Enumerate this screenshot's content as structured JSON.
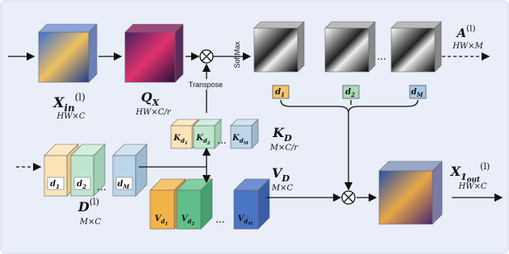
{
  "nodes": {
    "x_in": {
      "base": "X",
      "sub": "in",
      "sup": "(l)",
      "shape": "HW×C"
    },
    "q_x": {
      "base": "Q",
      "sub": "X",
      "shape": "HW×C/r"
    },
    "a": {
      "base": "A",
      "sup": "(l)",
      "shape": "HW×M"
    },
    "k_d": {
      "base": "K",
      "sub": "D",
      "shape": "M×C/r"
    },
    "v_d": {
      "base": "V",
      "sub": "D",
      "shape": "M×C"
    },
    "d": {
      "base": "D",
      "sup": "(l)",
      "shape": "M×C"
    },
    "x_out": {
      "base": "X",
      "sub": "1",
      "subsub": "out",
      "sup": "(l)",
      "shape": "HW×C"
    }
  },
  "ops": {
    "transpose": "Transpose",
    "softmax": "SoftMax"
  },
  "tokens": {
    "d": [
      {
        "base": "d",
        "sub": "1"
      },
      {
        "base": "d",
        "sub": "2"
      },
      {
        "base": "d",
        "sub": "M"
      }
    ],
    "k": [
      {
        "base": "K",
        "sub": "d",
        "subsub": "1"
      },
      {
        "base": "K",
        "sub": "d",
        "subsub": "2"
      },
      {
        "base": "K",
        "sub": "d",
        "subsub": "M"
      }
    ],
    "v": [
      {
        "base": "V",
        "sub": "d",
        "subsub": "1"
      },
      {
        "base": "V",
        "sub": "d",
        "subsub": "2"
      },
      {
        "base": "V",
        "sub": "d",
        "subsub": "M"
      }
    ]
  },
  "ellipsis": "..."
}
